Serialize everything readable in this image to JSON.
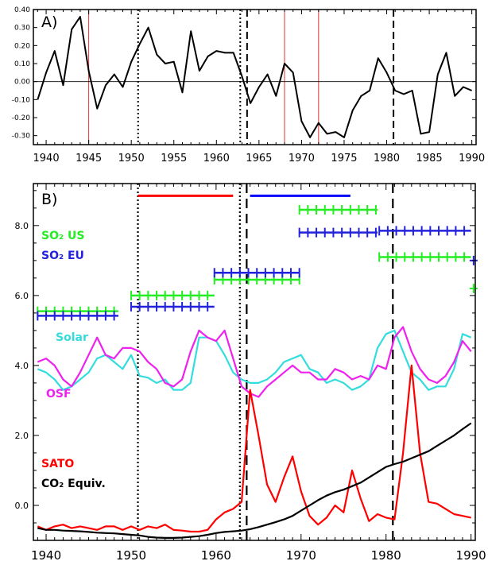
{
  "chart_data": [
    {
      "type": "line",
      "panel_label": "A)",
      "xlim": [
        1938.5,
        1990.5
      ],
      "ylim": [
        -0.35,
        0.4
      ],
      "x_ticks": [
        1940,
        1945,
        1950,
        1955,
        1960,
        1965,
        1970,
        1975,
        1980,
        1985,
        1990
      ],
      "y_ticks": [
        -0.3,
        -0.2,
        -0.1,
        0.0,
        0.1,
        0.2,
        0.3,
        0.4
      ],
      "y_tick_labels": [
        "-0.30",
        "-0.20",
        "-0.10",
        "0.00",
        "0.10",
        "0.20",
        "0.30",
        "0.40"
      ],
      "zero_line": 0,
      "red_lines": [
        1945,
        1968,
        1972
      ],
      "dotted_lines": [
        1950.8,
        1962.8
      ],
      "dashed_lines": [
        1963.6,
        1980.8
      ],
      "series": [
        {
          "color": "#000000",
          "x": [
            1939,
            1940,
            1941,
            1942,
            1943,
            1944,
            1945,
            1946,
            1947,
            1948,
            1949,
            1950,
            1951,
            1952,
            1953,
            1954,
            1955,
            1956,
            1957,
            1958,
            1959,
            1960,
            1961,
            1962,
            1963,
            1964,
            1965,
            1966,
            1967,
            1968,
            1969,
            1970,
            1971,
            1972,
            1973,
            1974,
            1975,
            1976,
            1977,
            1978,
            1979,
            1980,
            1981,
            1982,
            1983,
            1984,
            1985,
            1986,
            1987,
            1988,
            1989,
            1990
          ],
          "y": [
            -0.1,
            0.05,
            0.17,
            -0.02,
            0.29,
            0.36,
            0.06,
            -0.15,
            -0.02,
            0.04,
            -0.03,
            0.11,
            0.21,
            0.3,
            0.15,
            0.1,
            0.11,
            -0.06,
            0.28,
            0.06,
            0.14,
            0.17,
            0.16,
            0.16,
            0.03,
            -0.12,
            -0.03,
            0.04,
            -0.08,
            0.1,
            0.05,
            -0.22,
            -0.31,
            -0.23,
            -0.29,
            -0.28,
            -0.31,
            -0.16,
            -0.08,
            -0.05,
            0.13,
            0.05,
            -0.05,
            -0.07,
            -0.05,
            -0.29,
            -0.28,
            0.04,
            0.16,
            -0.08,
            -0.03,
            -0.05
          ]
        }
      ]
    },
    {
      "type": "line",
      "panel_label": "B)",
      "xlim": [
        1938.5,
        1990.5
      ],
      "ylim": [
        -1.0,
        9.2
      ],
      "x_ticks": [
        1940,
        1950,
        1960,
        1970,
        1980,
        1990
      ],
      "y_ticks": [
        0,
        2,
        4,
        6,
        8
      ],
      "y_tick_labels": [
        "0.0",
        "2.0",
        "4.0",
        "6.0",
        "8.0"
      ],
      "dotted_lines": [
        1950.8,
        1962.8
      ],
      "dashed_lines": [
        1963.6,
        1980.8
      ],
      "period_bars": [
        {
          "x0": 1950.8,
          "x1": 1962,
          "y": 8.85,
          "color": "#ff0000"
        },
        {
          "x0": 1964,
          "x1": 1975.8,
          "y": 8.85,
          "color": "#0000ff"
        }
      ],
      "so2_us": {
        "color": "#22ee22",
        "segments": [
          {
            "x0": 1939,
            "x1": 1948.5,
            "y": 5.55
          },
          {
            "x0": 1950,
            "x1": 1959.8,
            "y": 6.0
          },
          {
            "x0": 1959.8,
            "x1": 1969.8,
            "y": 6.45
          },
          {
            "x0": 1969.8,
            "x1": 1979,
            "y": 8.45
          },
          {
            "x0": 1979.2,
            "x1": 1990,
            "y": 7.1
          }
        ]
      },
      "so2_eu": {
        "color": "#2222dd",
        "segments": [
          {
            "x0": 1939,
            "x1": 1948.5,
            "y": 5.42
          },
          {
            "x0": 1950,
            "x1": 1959.8,
            "y": 5.68
          },
          {
            "x0": 1959.8,
            "x1": 1969.8,
            "y": 6.65
          },
          {
            "x0": 1969.8,
            "x1": 1979,
            "y": 7.8
          },
          {
            "x0": 1979.2,
            "x1": 1990,
            "y": 7.85
          }
        ]
      },
      "edge_markers": [
        {
          "x": 1990.3,
          "y": 6.2,
          "color": "#22ee22"
        },
        {
          "x": 1990.3,
          "y": 7.0,
          "color": "#2222dd"
        }
      ],
      "legend": [
        {
          "label": "SO₂ US",
          "color": "#22ee22",
          "position": "upper-left"
        },
        {
          "label": "SO₂ EU",
          "color": "#2222dd",
          "position": "upper-left"
        },
        {
          "label": "Solar",
          "color": "#33dddd",
          "position": "middle-left"
        },
        {
          "label": "OSF",
          "color": "#ee22ee",
          "position": "middle-left"
        },
        {
          "label": "SATO",
          "color": "#ff0000",
          "position": "lower-left"
        },
        {
          "label": "CO₂ Equiv.",
          "color": "#000000",
          "position": "lower-left"
        }
      ],
      "series": [
        {
          "name": "Solar",
          "color": "#33dddd",
          "x": [
            1939,
            1940,
            1941,
            1942,
            1943,
            1944,
            1945,
            1946,
            1947,
            1948,
            1949,
            1950,
            1951,
            1952,
            1953,
            1954,
            1955,
            1956,
            1957,
            1958,
            1959,
            1960,
            1961,
            1962,
            1963,
            1964,
            1965,
            1966,
            1967,
            1968,
            1969,
            1970,
            1971,
            1972,
            1973,
            1974,
            1975,
            1976,
            1977,
            1978,
            1979,
            1980,
            1981,
            1982,
            1983,
            1984,
            1985,
            1986,
            1987,
            1988,
            1989,
            1990
          ],
          "y": [
            3.9,
            3.8,
            3.6,
            3.3,
            3.4,
            3.6,
            3.8,
            4.2,
            4.3,
            4.1,
            3.9,
            4.3,
            3.7,
            3.65,
            3.5,
            3.6,
            3.3,
            3.3,
            3.5,
            4.8,
            4.8,
            4.7,
            4.3,
            3.8,
            3.6,
            3.5,
            3.5,
            3.6,
            3.8,
            4.1,
            4.2,
            4.3,
            3.9,
            3.8,
            3.5,
            3.6,
            3.5,
            3.3,
            3.4,
            3.6,
            4.5,
            4.9,
            5.0,
            4.4,
            3.8,
            3.6,
            3.3,
            3.4,
            3.4,
            3.9,
            4.9,
            4.8
          ]
        },
        {
          "name": "OSF",
          "color": "#ee22ee",
          "x": [
            1939,
            1940,
            1941,
            1942,
            1943,
            1944,
            1945,
            1946,
            1947,
            1948,
            1949,
            1950,
            1951,
            1952,
            1953,
            1954,
            1955,
            1956,
            1957,
            1958,
            1959,
            1960,
            1961,
            1962,
            1963,
            1964,
            1965,
            1966,
            1967,
            1968,
            1969,
            1970,
            1971,
            1972,
            1973,
            1974,
            1975,
            1976,
            1977,
            1978,
            1979,
            1980,
            1981,
            1982,
            1983,
            1984,
            1985,
            1986,
            1987,
            1988,
            1989,
            1990
          ],
          "y": [
            4.1,
            4.2,
            4.0,
            3.6,
            3.4,
            3.8,
            4.3,
            4.8,
            4.3,
            4.2,
            4.5,
            4.5,
            4.4,
            4.1,
            3.9,
            3.5,
            3.4,
            3.6,
            4.4,
            5.0,
            4.8,
            4.7,
            5.0,
            4.2,
            3.4,
            3.2,
            3.1,
            3.4,
            3.6,
            3.8,
            4.0,
            3.8,
            3.8,
            3.6,
            3.6,
            3.9,
            3.8,
            3.6,
            3.7,
            3.6,
            4.0,
            3.9,
            4.8,
            5.1,
            4.4,
            3.9,
            3.6,
            3.5,
            3.7,
            4.1,
            4.7,
            4.4
          ]
        },
        {
          "name": "SATO",
          "color": "#ff0000",
          "x": [
            1939,
            1940,
            1941,
            1942,
            1943,
            1944,
            1945,
            1946,
            1947,
            1948,
            1949,
            1950,
            1951,
            1952,
            1953,
            1954,
            1955,
            1956,
            1957,
            1958,
            1959,
            1960,
            1961,
            1962,
            1963,
            1964,
            1965,
            1966,
            1967,
            1968,
            1969,
            1970,
            1971,
            1972,
            1973,
            1974,
            1975,
            1976,
            1977,
            1978,
            1979,
            1980,
            1981,
            1982,
            1983,
            1984,
            1985,
            1986,
            1987,
            1988,
            1989,
            1990
          ],
          "y": [
            -0.6,
            -0.7,
            -0.6,
            -0.55,
            -0.65,
            -0.6,
            -0.65,
            -0.7,
            -0.6,
            -0.6,
            -0.7,
            -0.6,
            -0.7,
            -0.6,
            -0.65,
            -0.55,
            -0.7,
            -0.72,
            -0.75,
            -0.75,
            -0.7,
            -0.4,
            -0.2,
            -0.1,
            0.1,
            3.3,
            2.0,
            0.6,
            0.1,
            0.8,
            1.4,
            0.4,
            -0.3,
            -0.55,
            -0.35,
            0.0,
            -0.2,
            1.0,
            0.2,
            -0.45,
            -0.25,
            -0.35,
            -0.4,
            1.5,
            4.0,
            1.5,
            0.1,
            0.05,
            -0.1,
            -0.25,
            -0.3,
            -0.35
          ]
        },
        {
          "name": "CO₂ Equiv.",
          "color": "#000000",
          "x": [
            1939,
            1940,
            1941,
            1942,
            1943,
            1944,
            1945,
            1946,
            1947,
            1948,
            1949,
            1950,
            1951,
            1952,
            1953,
            1954,
            1955,
            1956,
            1957,
            1958,
            1959,
            1960,
            1961,
            1962,
            1963,
            1964,
            1965,
            1966,
            1967,
            1968,
            1969,
            1970,
            1971,
            1972,
            1973,
            1974,
            1975,
            1976,
            1977,
            1978,
            1979,
            1980,
            1981,
            1982,
            1983,
            1984,
            1985,
            1986,
            1987,
            1988,
            1989,
            1990
          ],
          "y": [
            -0.65,
            -0.7,
            -0.7,
            -0.72,
            -0.73,
            -0.74,
            -0.76,
            -0.78,
            -0.79,
            -0.8,
            -0.82,
            -0.84,
            -0.86,
            -0.9,
            -0.92,
            -0.93,
            -0.93,
            -0.92,
            -0.9,
            -0.88,
            -0.84,
            -0.79,
            -0.76,
            -0.74,
            -0.72,
            -0.68,
            -0.62,
            -0.55,
            -0.48,
            -0.4,
            -0.3,
            -0.15,
            0.0,
            0.15,
            0.28,
            0.38,
            0.45,
            0.55,
            0.65,
            0.8,
            0.95,
            1.1,
            1.18,
            1.25,
            1.35,
            1.45,
            1.55,
            1.7,
            1.85,
            2.0,
            2.18,
            2.35
          ]
        }
      ]
    }
  ]
}
